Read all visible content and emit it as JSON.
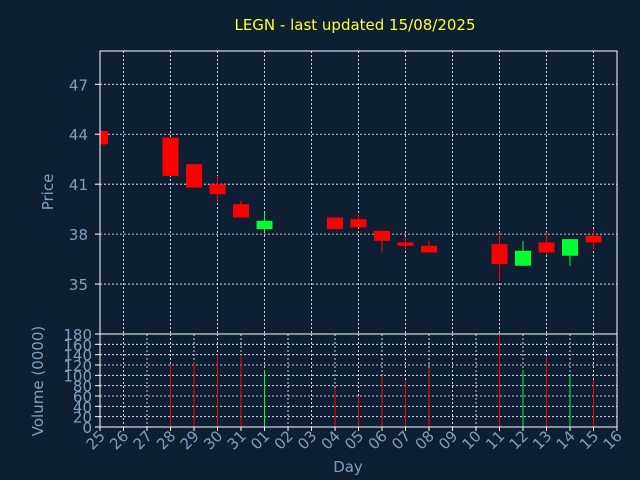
{
  "chart_data": {
    "title": "LEGN - last updated 15/08/2025",
    "colors": {
      "up": "#00ff33",
      "down": "#ff0000",
      "title": "#ffff33",
      "axis_text": "#7f9fc0",
      "background": "#0f1f33"
    },
    "price_panel": {
      "type": "candlestick",
      "ylabel": "Price",
      "ylim": [
        32,
        49
      ],
      "yticks": [
        35,
        38,
        41,
        44,
        47
      ],
      "grid": true
    },
    "volume_panel": {
      "type": "bar",
      "ylabel": "Volume (0000)",
      "ylim": [
        0,
        180
      ],
      "yticks": [
        0,
        20,
        40,
        60,
        80,
        100,
        120,
        140,
        160,
        180
      ],
      "grid": true
    },
    "xlabel": "Day",
    "days": [
      "25",
      "26",
      "27",
      "28",
      "29",
      "30",
      "31",
      "01",
      "02",
      "03",
      "04",
      "05",
      "06",
      "07",
      "08",
      "09",
      "10",
      "11",
      "12",
      "13",
      "14",
      "15",
      "16"
    ],
    "candles": [
      {
        "day": "25",
        "open": 44.2,
        "high": 44.2,
        "low": 43.3,
        "close": 43.4,
        "volume": null
      },
      {
        "day": "28",
        "open": 43.8,
        "high": 43.8,
        "low": 41.5,
        "close": 41.5,
        "volume": 120
      },
      {
        "day": "29",
        "open": 42.2,
        "high": 42.2,
        "low": 40.8,
        "close": 40.8,
        "volume": 125
      },
      {
        "day": "30",
        "open": 41.0,
        "high": 41.5,
        "low": 39.9,
        "close": 40.4,
        "volume": 140
      },
      {
        "day": "31",
        "open": 39.8,
        "high": 40.0,
        "low": 39.0,
        "close": 39.0,
        "volume": 140
      },
      {
        "day": "01",
        "open": 38.3,
        "high": 39.3,
        "low": 38.1,
        "close": 38.8,
        "volume": 110
      },
      {
        "day": "04",
        "open": 39.0,
        "high": 39.0,
        "low": 38.3,
        "close": 38.3,
        "volume": 75
      },
      {
        "day": "05",
        "open": 38.9,
        "high": 39.2,
        "low": 38.4,
        "close": 38.4,
        "volume": 60
      },
      {
        "day": "06",
        "open": 38.2,
        "high": 38.2,
        "low": 36.9,
        "close": 37.6,
        "volume": 100
      },
      {
        "day": "07",
        "open": 37.5,
        "high": 37.8,
        "low": 37.0,
        "close": 37.3,
        "volume": 90
      },
      {
        "day": "08",
        "open": 37.3,
        "high": 37.6,
        "low": 36.9,
        "close": 36.9,
        "volume": 115
      },
      {
        "day": "11",
        "open": 37.4,
        "high": 38.1,
        "low": 35.2,
        "close": 36.2,
        "volume": 180
      },
      {
        "day": "12",
        "open": 36.1,
        "high": 37.6,
        "low": 36.1,
        "close": 37.0,
        "volume": 110
      },
      {
        "day": "13",
        "open": 37.5,
        "high": 38.1,
        "low": 36.8,
        "close": 36.9,
        "volume": 135
      },
      {
        "day": "14",
        "open": 36.7,
        "high": 37.7,
        "low": 36.1,
        "close": 37.7,
        "volume": 100
      },
      {
        "day": "15",
        "open": 37.9,
        "high": 38.3,
        "low": 37.1,
        "close": 37.5,
        "volume": 90
      }
    ]
  }
}
